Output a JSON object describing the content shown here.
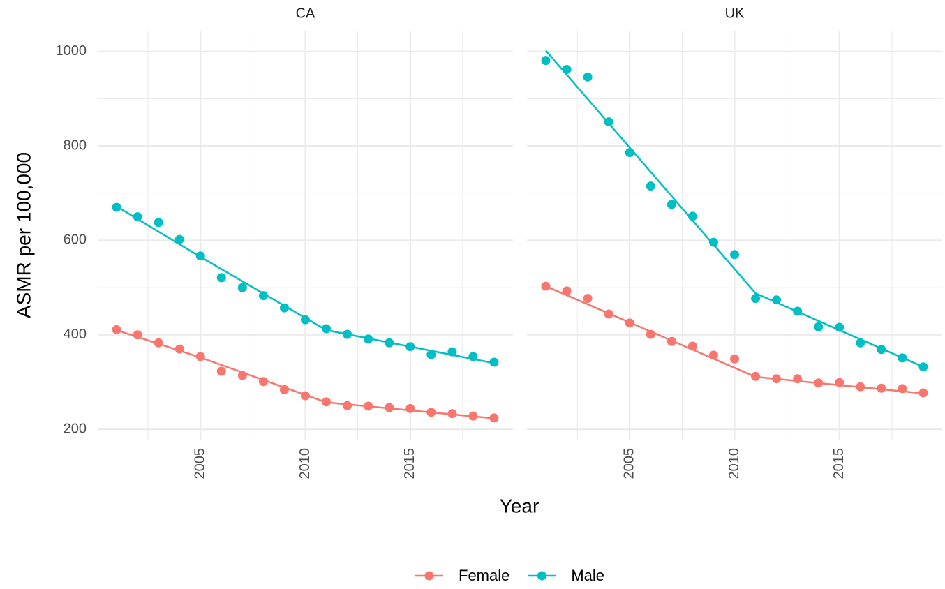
{
  "chart_data": {
    "type": "line",
    "x_label": "Year",
    "y_label": "ASMR per 100,000",
    "xlim": [
      2000.1,
      2019.9
    ],
    "xticks": [
      2005,
      2010,
      2015
    ],
    "minor_xticks": [
      2002.5,
      2007.5,
      2012.5,
      2017.5
    ],
    "ylim": [
      178,
      1044
    ],
    "yticks": [
      200,
      400,
      600,
      800,
      1000
    ],
    "minor_yticks": [
      300,
      500,
      700,
      900
    ],
    "grid": true,
    "legend": "bottom",
    "x": [
      2001,
      2002,
      2003,
      2004,
      2005,
      2006,
      2007,
      2008,
      2009,
      2010,
      2011,
      2012,
      2013,
      2014,
      2015,
      2016,
      2017,
      2018,
      2019
    ],
    "series_names": [
      {
        "name": "Female",
        "color": "#F8766D"
      },
      {
        "name": "Male",
        "color": "#00BFC4"
      }
    ],
    "facets": [
      {
        "title": "CA",
        "series": [
          {
            "values": [
              411,
              400,
              383,
              370,
              354,
              323,
              314,
              301,
              284,
              271,
              258,
              250,
              249,
              246,
              244,
              236,
              233,
              228,
              224
            ],
            "fit_x": [
              2001,
              2005,
              2011,
              2019
            ],
            "fit_values": [
              410,
              352,
              257,
              223
            ]
          },
          {
            "values": [
              670,
              650,
              638,
              602,
              567,
              521,
              500,
              483,
              457,
              432,
              413,
              401,
              391,
              383,
              375,
              358,
              364,
              354,
              342
            ],
            "fit_x": [
              2001,
              2005,
              2011,
              2019
            ],
            "fit_values": [
              672,
              565,
              410,
              340
            ]
          }
        ]
      },
      {
        "title": "UK",
        "series": [
          {
            "values": [
              503,
              493,
              477,
              444,
              425,
              401,
              386,
              376,
              357,
              349,
              312,
              307,
              307,
              298,
              299,
              290,
              287,
              286,
              277
            ],
            "fit_x": [
              2001,
              2011,
              2019
            ],
            "fit_values": [
              503,
              311,
              276
            ]
          },
          {
            "values": [
              981,
              962,
              946,
              851,
              786,
              715,
              676,
              651,
              596,
              570,
              477,
              474,
              450,
              417,
              416,
              383,
              369,
              351,
              332
            ],
            "fit_x": [
              2001,
              2011,
              2019
            ],
            "fit_values": [
              1002,
              488,
              332
            ]
          }
        ]
      }
    ]
  }
}
